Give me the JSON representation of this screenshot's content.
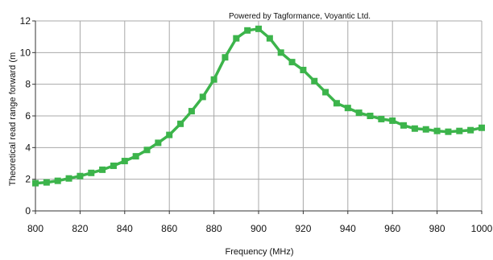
{
  "credit": "Powered by Tagformance, Voyantic Ltd.",
  "colors": {
    "series": "#3cb44b",
    "grid": "#a8a8a8",
    "axis": "#333333",
    "background": "#ffffff"
  },
  "chart_data": {
    "type": "line",
    "title": "",
    "xlabel": "Frequency (MHz)",
    "ylabel": "Theoretical read range forward (m",
    "xlim": [
      800,
      1000
    ],
    "ylim": [
      0,
      12
    ],
    "xticks": [
      800,
      820,
      840,
      860,
      880,
      900,
      920,
      940,
      960,
      980,
      1000
    ],
    "yticks": [
      0,
      2,
      4,
      6,
      8,
      10,
      12
    ],
    "grid": true,
    "legend": "none",
    "series": [
      {
        "marker": "square",
        "x": [
          800,
          805,
          810,
          815,
          820,
          825,
          830,
          835,
          840,
          845,
          850,
          855,
          860,
          865,
          870,
          875,
          880,
          885,
          890,
          895,
          900,
          905,
          910,
          915,
          920,
          925,
          930,
          935,
          940,
          945,
          950,
          955,
          960,
          965,
          970,
          975,
          980,
          985,
          990,
          995,
          1000
        ],
        "y": [
          1.75,
          1.8,
          1.9,
          2.05,
          2.2,
          2.4,
          2.6,
          2.85,
          3.15,
          3.45,
          3.85,
          4.3,
          4.8,
          5.5,
          6.3,
          7.2,
          8.3,
          9.7,
          10.9,
          11.4,
          11.5,
          10.9,
          10.0,
          9.4,
          8.9,
          8.2,
          7.5,
          6.8,
          6.5,
          6.2,
          6.0,
          5.8,
          5.7,
          5.4,
          5.2,
          5.15,
          5.05,
          5.0,
          5.05,
          5.1,
          5.25
        ]
      }
    ]
  }
}
